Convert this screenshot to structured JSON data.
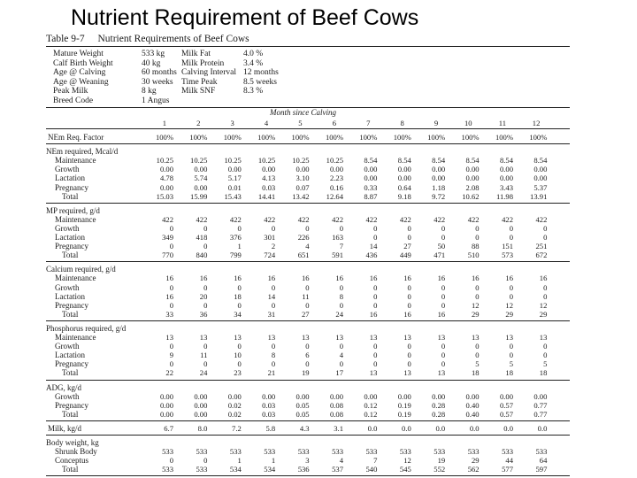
{
  "title": "Nutrient Requirement of Beef Cows",
  "table": {
    "label": "Table 9-7",
    "caption": "Nutrient Requirements of Beef Cows",
    "info_left": [
      {
        "label": "Mature Weight",
        "value": "533 kg"
      },
      {
        "label": "Calf Birth Weight",
        "value": "40 kg"
      },
      {
        "label": "Age @ Calving",
        "value": "60 months"
      },
      {
        "label": "Age @ Weaning",
        "value": "30 weeks"
      },
      {
        "label": "Peak Milk",
        "value": "8 kg"
      },
      {
        "label": "Breed Code",
        "value": "1 Angus"
      }
    ],
    "info_right": [
      {
        "label": "Milk Fat",
        "value": "4.0 %"
      },
      {
        "label": "Milk Protein",
        "value": "3.4 %"
      },
      {
        "label": "Calving Interval",
        "value": "12 months"
      },
      {
        "label": "Time Peak",
        "value": "8.5 weeks"
      },
      {
        "label": "Milk SNF",
        "value": "8.3 %"
      }
    ],
    "months_header": "Month since Calving",
    "months": [
      "1",
      "2",
      "3",
      "4",
      "5",
      "6",
      "7",
      "8",
      "9",
      "10",
      "11",
      "12"
    ],
    "sections": [
      {
        "heading": "",
        "rows": [
          {
            "label": "NEm Req. Factor",
            "values": [
              "100%",
              "100%",
              "100%",
              "100%",
              "100%",
              "100%",
              "100%",
              "100%",
              "100%",
              "100%",
              "100%",
              "100%"
            ]
          }
        ]
      },
      {
        "heading": "NEm required, Mcal/d",
        "rows": [
          {
            "label": "Maintenance",
            "values": [
              "10.25",
              "10.25",
              "10.25",
              "10.25",
              "10.25",
              "10.25",
              "8.54",
              "8.54",
              "8.54",
              "8.54",
              "8.54",
              "8.54"
            ]
          },
          {
            "label": "Growth",
            "values": [
              "0.00",
              "0.00",
              "0.00",
              "0.00",
              "0.00",
              "0.00",
              "0.00",
              "0.00",
              "0.00",
              "0.00",
              "0.00",
              "0.00"
            ]
          },
          {
            "label": "Lactation",
            "values": [
              "4.78",
              "5.74",
              "5.17",
              "4.13",
              "3.10",
              "2.23",
              "0.00",
              "0.00",
              "0.00",
              "0.00",
              "0.00",
              "0.00"
            ]
          },
          {
            "label": "Pregnancy",
            "values": [
              "0.00",
              "0.00",
              "0.01",
              "0.03",
              "0.07",
              "0.16",
              "0.33",
              "0.64",
              "1.18",
              "2.08",
              "3.43",
              "5.37"
            ]
          },
          {
            "label": "Total",
            "values": [
              "15.03",
              "15.99",
              "15.43",
              "14.41",
              "13.42",
              "12.64",
              "8.87",
              "9.18",
              "9.72",
              "10.62",
              "11.98",
              "13.91"
            ]
          }
        ]
      },
      {
        "heading": "MP required, g/d",
        "rows": [
          {
            "label": "Maintenance",
            "values": [
              "422",
              "422",
              "422",
              "422",
              "422",
              "422",
              "422",
              "422",
              "422",
              "422",
              "422",
              "422"
            ]
          },
          {
            "label": "Growth",
            "values": [
              "0",
              "0",
              "0",
              "0",
              "0",
              "0",
              "0",
              "0",
              "0",
              "0",
              "0",
              "0"
            ]
          },
          {
            "label": "Lactation",
            "values": [
              "349",
              "418",
              "376",
              "301",
              "226",
              "163",
              "0",
              "0",
              "0",
              "0",
              "0",
              "0"
            ]
          },
          {
            "label": "Pregnancy",
            "values": [
              "0",
              "0",
              "1",
              "2",
              "4",
              "7",
              "14",
              "27",
              "50",
              "88",
              "151",
              "251"
            ]
          },
          {
            "label": "Total",
            "values": [
              "770",
              "840",
              "799",
              "724",
              "651",
              "591",
              "436",
              "449",
              "471",
              "510",
              "573",
              "672"
            ]
          }
        ]
      },
      {
        "heading": "Calcium required, g/d",
        "rows": [
          {
            "label": "Maintenance",
            "values": [
              "16",
              "16",
              "16",
              "16",
              "16",
              "16",
              "16",
              "16",
              "16",
              "16",
              "16",
              "16"
            ]
          },
          {
            "label": "Growth",
            "values": [
              "0",
              "0",
              "0",
              "0",
              "0",
              "0",
              "0",
              "0",
              "0",
              "0",
              "0",
              "0"
            ]
          },
          {
            "label": "Lactation",
            "values": [
              "16",
              "20",
              "18",
              "14",
              "11",
              "8",
              "0",
              "0",
              "0",
              "0",
              "0",
              "0"
            ]
          },
          {
            "label": "Pregnancy",
            "values": [
              "0",
              "0",
              "0",
              "0",
              "0",
              "0",
              "0",
              "0",
              "0",
              "12",
              "12",
              "12"
            ]
          },
          {
            "label": "Total",
            "values": [
              "33",
              "36",
              "34",
              "31",
              "27",
              "24",
              "16",
              "16",
              "16",
              "29",
              "29",
              "29"
            ]
          }
        ]
      },
      {
        "heading": "Phosphorus required, g/d",
        "rows": [
          {
            "label": "Maintenance",
            "values": [
              "13",
              "13",
              "13",
              "13",
              "13",
              "13",
              "13",
              "13",
              "13",
              "13",
              "13",
              "13"
            ]
          },
          {
            "label": "Growth",
            "values": [
              "0",
              "0",
              "0",
              "0",
              "0",
              "0",
              "0",
              "0",
              "0",
              "0",
              "0",
              "0"
            ]
          },
          {
            "label": "Lactation",
            "values": [
              "9",
              "11",
              "10",
              "8",
              "6",
              "4",
              "0",
              "0",
              "0",
              "0",
              "0",
              "0"
            ]
          },
          {
            "label": "Pregnancy",
            "values": [
              "0",
              "0",
              "0",
              "0",
              "0",
              "0",
              "0",
              "0",
              "0",
              "5",
              "5",
              "5"
            ]
          },
          {
            "label": "Total",
            "values": [
              "22",
              "24",
              "23",
              "21",
              "19",
              "17",
              "13",
              "13",
              "13",
              "18",
              "18",
              "18"
            ]
          }
        ]
      },
      {
        "heading": "ADG, kg/d",
        "rows": [
          {
            "label": "Growth",
            "values": [
              "0.00",
              "0.00",
              "0.00",
              "0.00",
              "0.00",
              "0.00",
              "0.00",
              "0.00",
              "0.00",
              "0.00",
              "0.00",
              "0.00"
            ]
          },
          {
            "label": "Pregnancy",
            "values": [
              "0.00",
              "0.00",
              "0.02",
              "0.03",
              "0.05",
              "0.08",
              "0.12",
              "0.19",
              "0.28",
              "0.40",
              "0.57",
              "0.77"
            ]
          },
          {
            "label": "Total",
            "values": [
              "0.00",
              "0.00",
              "0.02",
              "0.03",
              "0.05",
              "0.08",
              "0.12",
              "0.19",
              "0.28",
              "0.40",
              "0.57",
              "0.77"
            ]
          }
        ]
      },
      {
        "heading": "",
        "rows": [
          {
            "label": "Milk, kg/d",
            "values": [
              "6.7",
              "8.0",
              "7.2",
              "5.8",
              "4.3",
              "3.1",
              "0.0",
              "0.0",
              "0.0",
              "0.0",
              "0.0",
              "0.0"
            ]
          }
        ]
      },
      {
        "heading": "Body weight, kg",
        "rows": [
          {
            "label": "Shrunk Body",
            "values": [
              "533",
              "533",
              "533",
              "533",
              "533",
              "533",
              "533",
              "533",
              "533",
              "533",
              "533",
              "533"
            ]
          },
          {
            "label": "Conceptus",
            "values": [
              "0",
              "0",
              "1",
              "1",
              "3",
              "4",
              "7",
              "12",
              "19",
              "29",
              "44",
              "64"
            ]
          },
          {
            "label": "Total",
            "values": [
              "533",
              "533",
              "534",
              "534",
              "536",
              "537",
              "540",
              "545",
              "552",
              "562",
              "577",
              "597"
            ]
          }
        ]
      }
    ]
  }
}
